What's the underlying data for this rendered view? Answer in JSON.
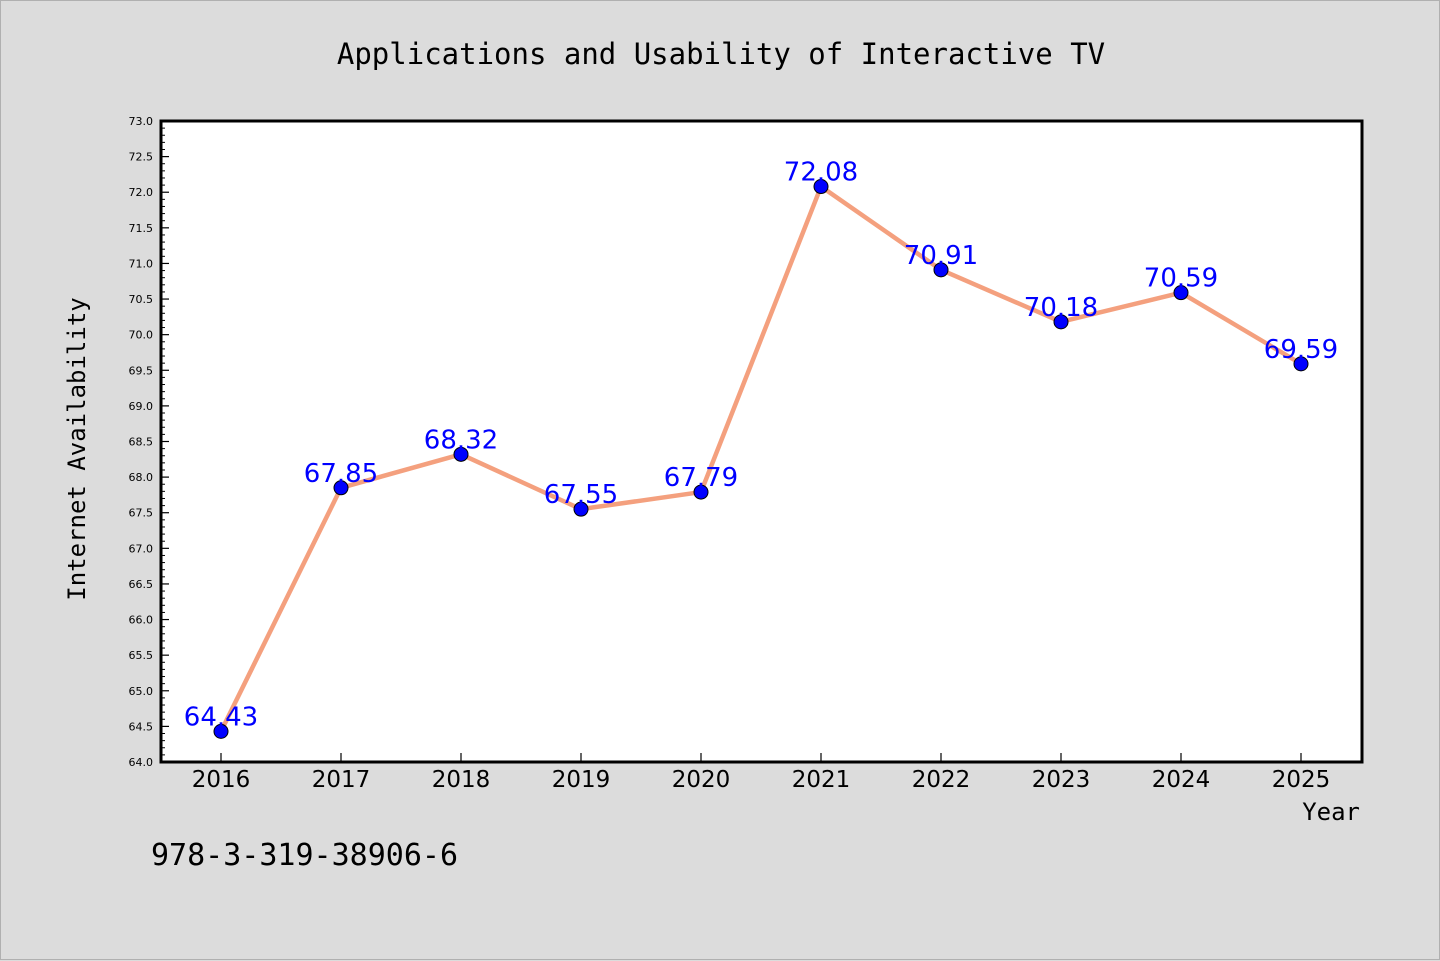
{
  "chart_data": {
    "type": "line",
    "title": "Applications and Usability of Interactive TV",
    "xlabel": "Year",
    "ylabel": "Internet Availability",
    "categories": [
      "2016",
      "2017",
      "2018",
      "2019",
      "2020",
      "2021",
      "2022",
      "2023",
      "2024",
      "2025"
    ],
    "series": [
      {
        "values": [
          64.43,
          67.85,
          68.32,
          67.55,
          67.79,
          72.08,
          70.91,
          70.18,
          70.59,
          69.59
        ],
        "data_labels": [
          "64.43",
          "67.85",
          "68.32",
          "67.55",
          "67.79",
          "72.08",
          "70.91",
          "70.18",
          "70.59",
          "69.59"
        ],
        "line_color": "#f4a07e",
        "marker_color": "#0000ff",
        "label_color": "#0000ff"
      }
    ],
    "ylim": [
      64.0,
      73.0
    ],
    "yticks": [
      "64.0",
      "64.5",
      "65.0",
      "65.5",
      "66.0",
      "66.5",
      "67.0",
      "67.5",
      "68.0",
      "68.5",
      "69.0",
      "69.5",
      "70.0",
      "70.5",
      "71.0",
      "71.5",
      "72.0",
      "72.5",
      "73.0"
    ],
    "grid": false,
    "legend": "none"
  },
  "annotation": {
    "isbn": "978-3-319-38906-6"
  },
  "colors": {
    "background": "#dcdcdc",
    "plot_background": "#ffffff",
    "axis": "#000000"
  }
}
